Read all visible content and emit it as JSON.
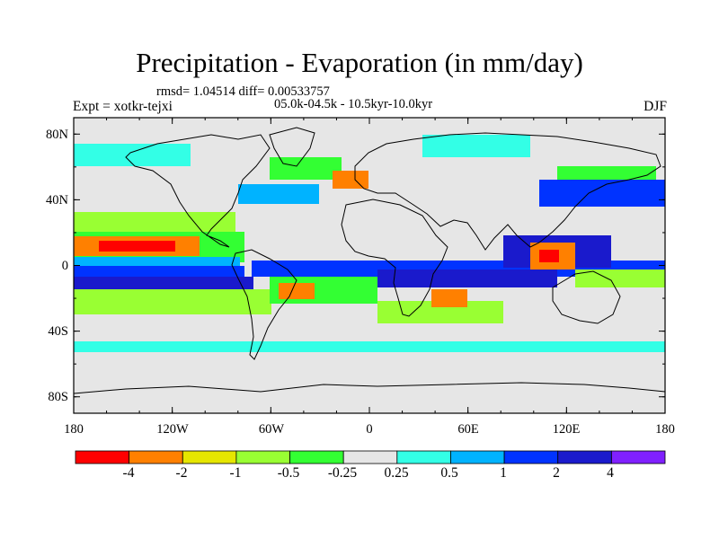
{
  "header": {
    "title": "Precipitation - Evaporation (in mm/day)",
    "stats": "rmsd= 1.04514 diff= 0.00533757",
    "period": "05.0k-04.5k - 10.5kyr-10.0kyr",
    "experiment": "Expt = xotkr-tejxi",
    "season": "DJF"
  },
  "axes": {
    "lat_labels": [
      "80N",
      "40N",
      "0",
      "40S",
      "80S"
    ],
    "lon_labels": [
      "180",
      "120W",
      "60W",
      "0",
      "60E",
      "120E",
      "180"
    ]
  },
  "colorbar": {
    "colors": [
      "#ff0000",
      "#ff8000",
      "#e6e600",
      "#99ff33",
      "#33ff33",
      "#e6e6e6",
      "#33ffe6",
      "#00b3ff",
      "#0033ff",
      "#1a1acc",
      "#8020ff"
    ],
    "labels": [
      "-4",
      "-2",
      "-1",
      "-0.5",
      "-0.25",
      "0.25",
      "0.5",
      "1",
      "2",
      "4"
    ]
  },
  "map": {
    "background_color": "#e6e6e6",
    "coastline_color": "#000000",
    "projection": "cylindrical equidistant",
    "field": "Precipitation - Evaporation anomaly"
  }
}
